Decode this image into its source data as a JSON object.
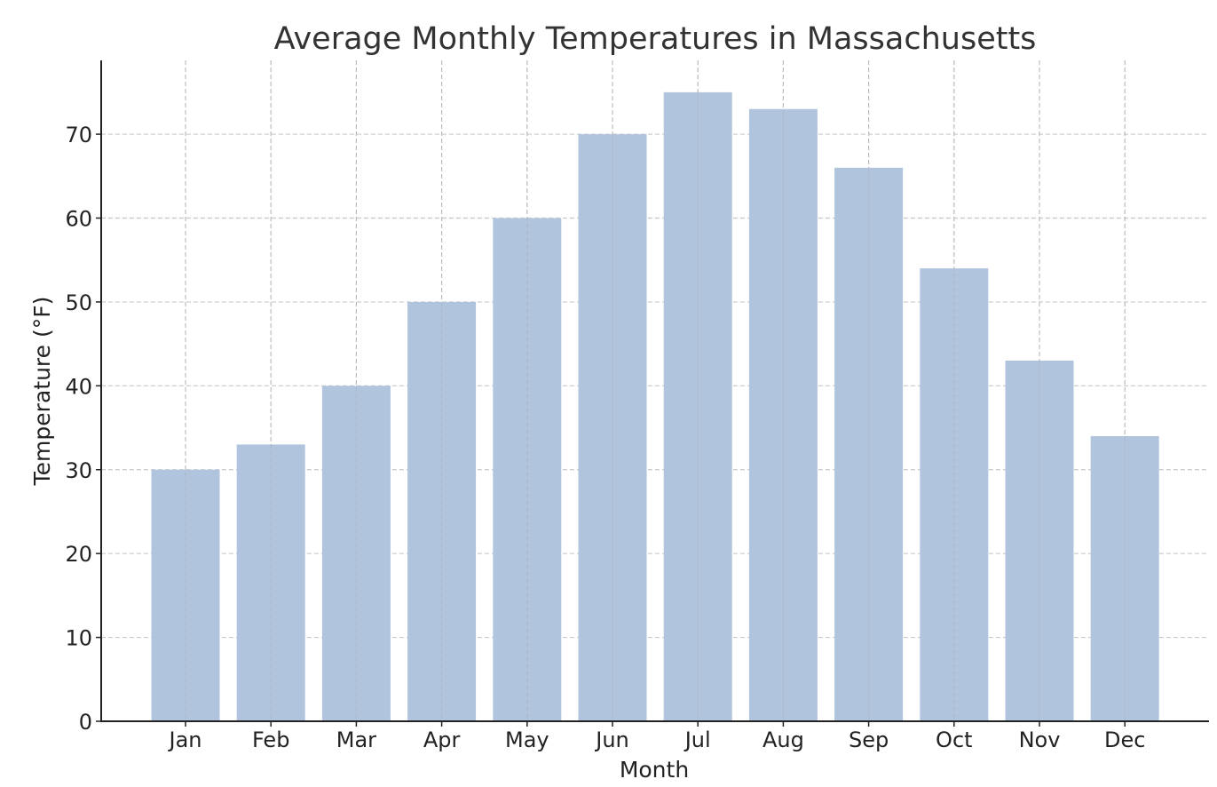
{
  "chart_data": {
    "type": "bar",
    "title": "Average Monthly Temperatures in Massachusetts",
    "xlabel": "Month",
    "ylabel": "Temperature (°F)",
    "categories": [
      "Jan",
      "Feb",
      "Mar",
      "Apr",
      "May",
      "Jun",
      "Jul",
      "Aug",
      "Sep",
      "Oct",
      "Nov",
      "Dec"
    ],
    "values": [
      30,
      33,
      40,
      50,
      60,
      70,
      75,
      73,
      66,
      54,
      43,
      34
    ],
    "yticks": [
      0,
      10,
      20,
      30,
      40,
      50,
      60,
      70
    ],
    "ylim": [
      0,
      78.8
    ],
    "grid": true,
    "bar_color": "#b0c4de"
  }
}
